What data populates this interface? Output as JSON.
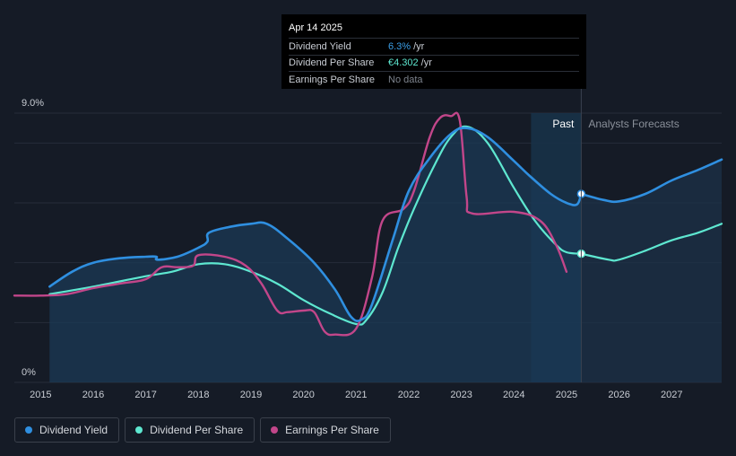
{
  "tooltip": {
    "date": "Apr 14 2025",
    "rows": [
      {
        "label": "Dividend Yield",
        "value": "6.3%",
        "unit": "/yr"
      },
      {
        "label": "Dividend Per Share",
        "value": "€4.302",
        "unit": "/yr"
      },
      {
        "label": "Earnings Per Share",
        "value": "No data",
        "unit": ""
      }
    ]
  },
  "legend": [
    {
      "label": "Dividend Yield",
      "color": "#2f8fe0"
    },
    {
      "label": "Dividend Per Share",
      "color": "#5ee7d0"
    },
    {
      "label": "Earnings Per Share",
      "color": "#c2468a"
    }
  ],
  "regions": {
    "past_label": "Past",
    "forecast_label": "Analysts Forecasts"
  },
  "colors": {
    "background": "#151b26",
    "yield": "#2f8fe0",
    "dps": "#5ee7d0",
    "eps": "#c2468a",
    "forecast_band": "#1b3a55"
  },
  "chart_data": {
    "type": "line",
    "y_axis": {
      "min": 0,
      "max": 9.0,
      "top_label": "9.0%",
      "bottom_label": "0%"
    },
    "x_axis": {
      "min": 2014.5,
      "max": 2027.95,
      "ticks": [
        "2015",
        "2016",
        "2017",
        "2018",
        "2019",
        "2020",
        "2021",
        "2022",
        "2023",
        "2024",
        "2025",
        "2026",
        "2027"
      ]
    },
    "past_end": 2025.28,
    "highlight_date": 2025.28,
    "series": [
      {
        "name": "Dividend Yield",
        "key": "yield",
        "points": [
          [
            2015.17,
            3.2
          ],
          [
            2015.6,
            3.7
          ],
          [
            2016.0,
            4.0
          ],
          [
            2016.5,
            4.15
          ],
          [
            2017.0,
            4.2
          ],
          [
            2017.2,
            4.2
          ],
          [
            2017.22,
            4.1
          ],
          [
            2017.6,
            4.2
          ],
          [
            2018.0,
            4.5
          ],
          [
            2018.17,
            4.7
          ],
          [
            2018.2,
            5.0
          ],
          [
            2018.6,
            5.2
          ],
          [
            2019.0,
            5.3
          ],
          [
            2019.3,
            5.3
          ],
          [
            2019.7,
            4.8
          ],
          [
            2020.2,
            4.0
          ],
          [
            2020.6,
            3.1
          ],
          [
            2020.9,
            2.2
          ],
          [
            2021.1,
            2.1
          ],
          [
            2021.3,
            2.6
          ],
          [
            2021.7,
            4.8
          ],
          [
            2022.0,
            6.4
          ],
          [
            2022.4,
            7.5
          ],
          [
            2022.8,
            8.3
          ],
          [
            2023.1,
            8.5
          ],
          [
            2023.5,
            8.2
          ],
          [
            2024.0,
            7.4
          ],
          [
            2024.3,
            6.9
          ],
          [
            2024.7,
            6.3
          ],
          [
            2025.0,
            6.0
          ],
          [
            2025.2,
            5.95
          ],
          [
            2025.28,
            6.3
          ]
        ]
      },
      {
        "name": "Dividend Yield Forecast",
        "key": "yield_forecast",
        "points": [
          [
            2025.28,
            6.3
          ],
          [
            2025.7,
            6.1
          ],
          [
            2026.0,
            6.05
          ],
          [
            2026.5,
            6.3
          ],
          [
            2027.0,
            6.75
          ],
          [
            2027.5,
            7.1
          ],
          [
            2027.95,
            7.45
          ]
        ]
      },
      {
        "name": "Dividend Per Share",
        "key": "dps",
        "points": [
          [
            2015.17,
            2.95
          ],
          [
            2016.0,
            3.2
          ],
          [
            2017.0,
            3.55
          ],
          [
            2017.5,
            3.7
          ],
          [
            2018.0,
            3.95
          ],
          [
            2018.5,
            3.95
          ],
          [
            2019.0,
            3.7
          ],
          [
            2019.5,
            3.3
          ],
          [
            2020.0,
            2.75
          ],
          [
            2020.5,
            2.3
          ],
          [
            2021.0,
            1.95
          ],
          [
            2021.2,
            2.1
          ],
          [
            2021.5,
            3.0
          ],
          [
            2021.8,
            4.5
          ],
          [
            2022.1,
            5.8
          ],
          [
            2022.5,
            7.3
          ],
          [
            2022.8,
            8.2
          ],
          [
            2023.1,
            8.55
          ],
          [
            2023.5,
            8.0
          ],
          [
            2024.0,
            6.5
          ],
          [
            2024.4,
            5.4
          ],
          [
            2024.8,
            4.6
          ],
          [
            2025.0,
            4.35
          ],
          [
            2025.28,
            4.3
          ]
        ]
      },
      {
        "name": "Dividend Per Share Forecast",
        "key": "dps_forecast",
        "points": [
          [
            2025.28,
            4.3
          ],
          [
            2025.8,
            4.1
          ],
          [
            2026.0,
            4.1
          ],
          [
            2026.5,
            4.4
          ],
          [
            2027.0,
            4.75
          ],
          [
            2027.5,
            5.0
          ],
          [
            2027.95,
            5.3
          ]
        ]
      },
      {
        "name": "Earnings Per Share",
        "key": "eps",
        "points": [
          [
            2014.5,
            2.9
          ],
          [
            2015.0,
            2.9
          ],
          [
            2015.5,
            2.95
          ],
          [
            2016.0,
            3.15
          ],
          [
            2016.5,
            3.3
          ],
          [
            2017.0,
            3.45
          ],
          [
            2017.3,
            3.85
          ],
          [
            2017.6,
            3.85
          ],
          [
            2017.9,
            3.9
          ],
          [
            2018.0,
            4.25
          ],
          [
            2018.5,
            4.2
          ],
          [
            2018.9,
            3.9
          ],
          [
            2019.2,
            3.3
          ],
          [
            2019.5,
            2.4
          ],
          [
            2019.7,
            2.35
          ],
          [
            2020.0,
            2.4
          ],
          [
            2020.2,
            2.35
          ],
          [
            2020.4,
            1.7
          ],
          [
            2020.6,
            1.6
          ],
          [
            2021.0,
            1.8
          ],
          [
            2021.3,
            3.5
          ],
          [
            2021.5,
            5.4
          ],
          [
            2021.9,
            5.8
          ],
          [
            2022.1,
            6.4
          ],
          [
            2022.4,
            8.2
          ],
          [
            2022.6,
            8.85
          ],
          [
            2022.8,
            8.9
          ],
          [
            2022.97,
            8.75
          ],
          [
            2023.1,
            6.2
          ],
          [
            2023.2,
            5.65
          ],
          [
            2024.0,
            5.7
          ],
          [
            2024.5,
            5.4
          ],
          [
            2024.8,
            4.6
          ],
          [
            2025.0,
            3.7
          ]
        ]
      }
    ]
  }
}
